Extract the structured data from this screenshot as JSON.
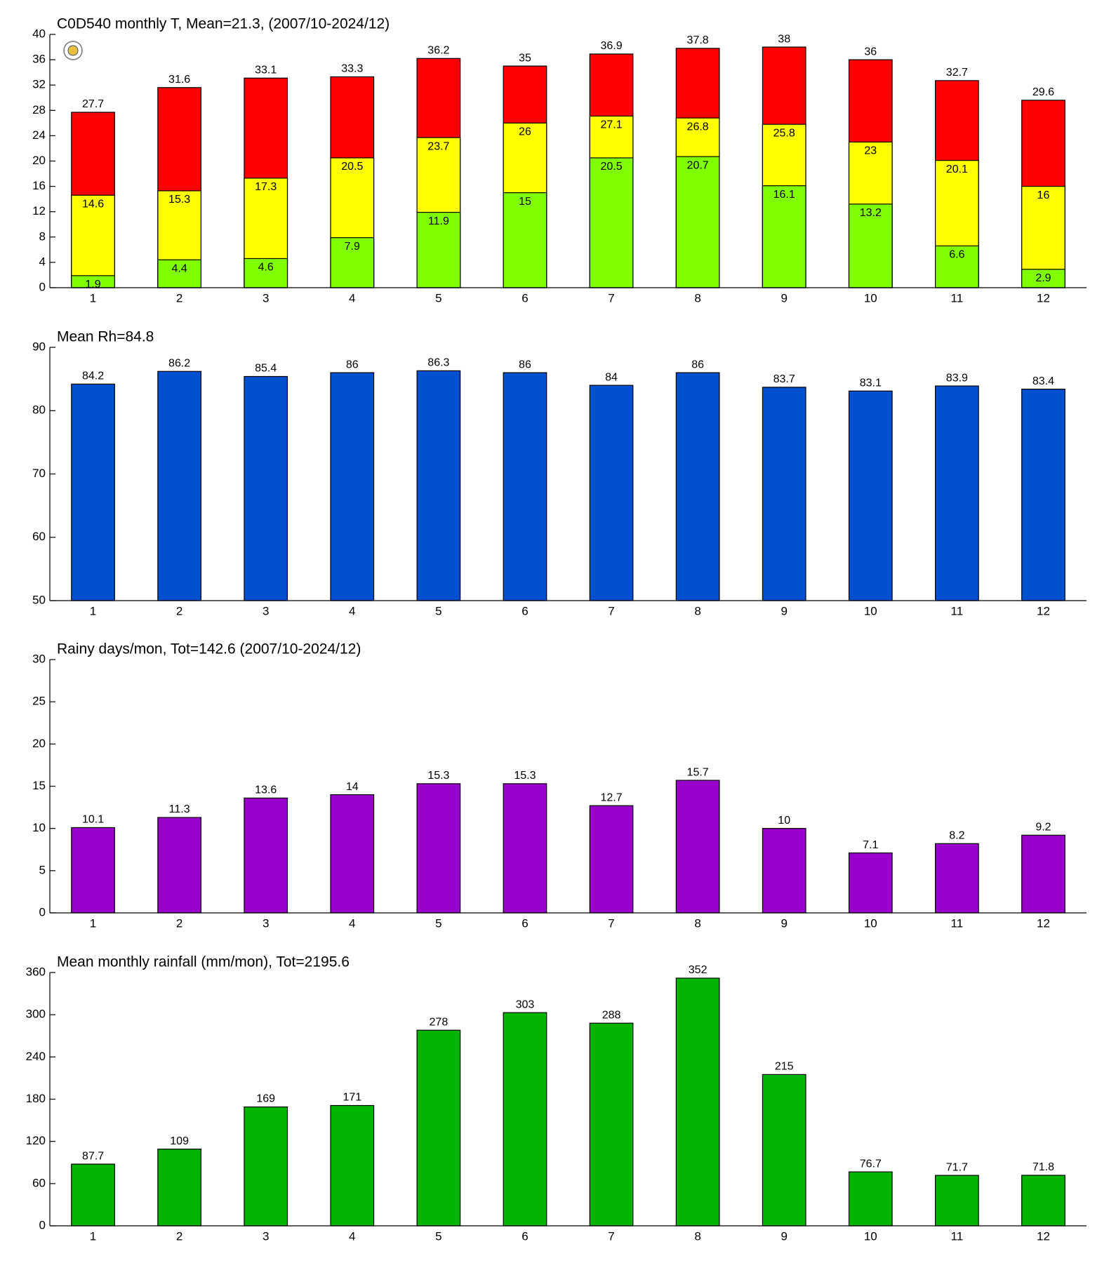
{
  "chart_data": [
    {
      "type": "bar",
      "title": "C0D540 monthly T, Mean=21.3, (2007/10-2024/12)",
      "categories": [
        "1",
        "2",
        "3",
        "4",
        "5",
        "6",
        "7",
        "8",
        "9",
        "10",
        "11",
        "12"
      ],
      "series": [
        {
          "color": "#80ff00",
          "values": [
            1.9,
            4.4,
            4.6,
            7.9,
            11.9,
            15,
            20.5,
            20.7,
            16.1,
            13.2,
            6.6,
            2.9
          ]
        },
        {
          "color": "#ffff00",
          "values": [
            14.6,
            15.3,
            17.3,
            20.5,
            23.7,
            26,
            27.1,
            26.8,
            25.8,
            23,
            20.1,
            16
          ]
        },
        {
          "color": "#ff0000",
          "values": [
            27.7,
            31.6,
            33.1,
            33.3,
            36.2,
            35,
            36.9,
            37.8,
            38,
            36,
            32.7,
            29.6
          ]
        }
      ],
      "ylim": [
        0,
        40
      ],
      "yticks": [
        0,
        4,
        8,
        12,
        16,
        20,
        24,
        28,
        32,
        36,
        40
      ]
    },
    {
      "type": "bar",
      "title": "Mean Rh=84.8",
      "categories": [
        "1",
        "2",
        "3",
        "4",
        "5",
        "6",
        "7",
        "8",
        "9",
        "10",
        "11",
        "12"
      ],
      "values": [
        84.2,
        86.2,
        85.4,
        86,
        86.3,
        86,
        84,
        86,
        83.7,
        83.1,
        83.9,
        83.4
      ],
      "color": "#0050d0",
      "ylim": [
        50,
        90
      ],
      "yticks": [
        50,
        60,
        70,
        80,
        90
      ]
    },
    {
      "type": "bar",
      "title": "Rainy days/mon, Tot=142.6 (2007/10-2024/12)",
      "categories": [
        "1",
        "2",
        "3",
        "4",
        "5",
        "6",
        "7",
        "8",
        "9",
        "10",
        "11",
        "12"
      ],
      "values": [
        10.1,
        11.3,
        13.6,
        14,
        15.3,
        15.3,
        12.7,
        15.7,
        10,
        7.1,
        8.2,
        9.2
      ],
      "color": "#9900cc",
      "ylim": [
        0,
        30
      ],
      "yticks": [
        0,
        5,
        10,
        15,
        20,
        25,
        30
      ]
    },
    {
      "type": "bar",
      "title": "Mean monthly rainfall (mm/mon), Tot=2195.6",
      "categories": [
        "1",
        "2",
        "3",
        "4",
        "5",
        "6",
        "7",
        "8",
        "9",
        "10",
        "11",
        "12"
      ],
      "values": [
        87.7,
        109,
        169,
        171,
        278,
        303,
        288,
        352,
        215,
        76.7,
        71.7,
        71.8
      ],
      "color": "#00b400",
      "ylim": [
        0,
        360
      ],
      "yticks": [
        0,
        60,
        120,
        180,
        240,
        300,
        360
      ]
    }
  ]
}
